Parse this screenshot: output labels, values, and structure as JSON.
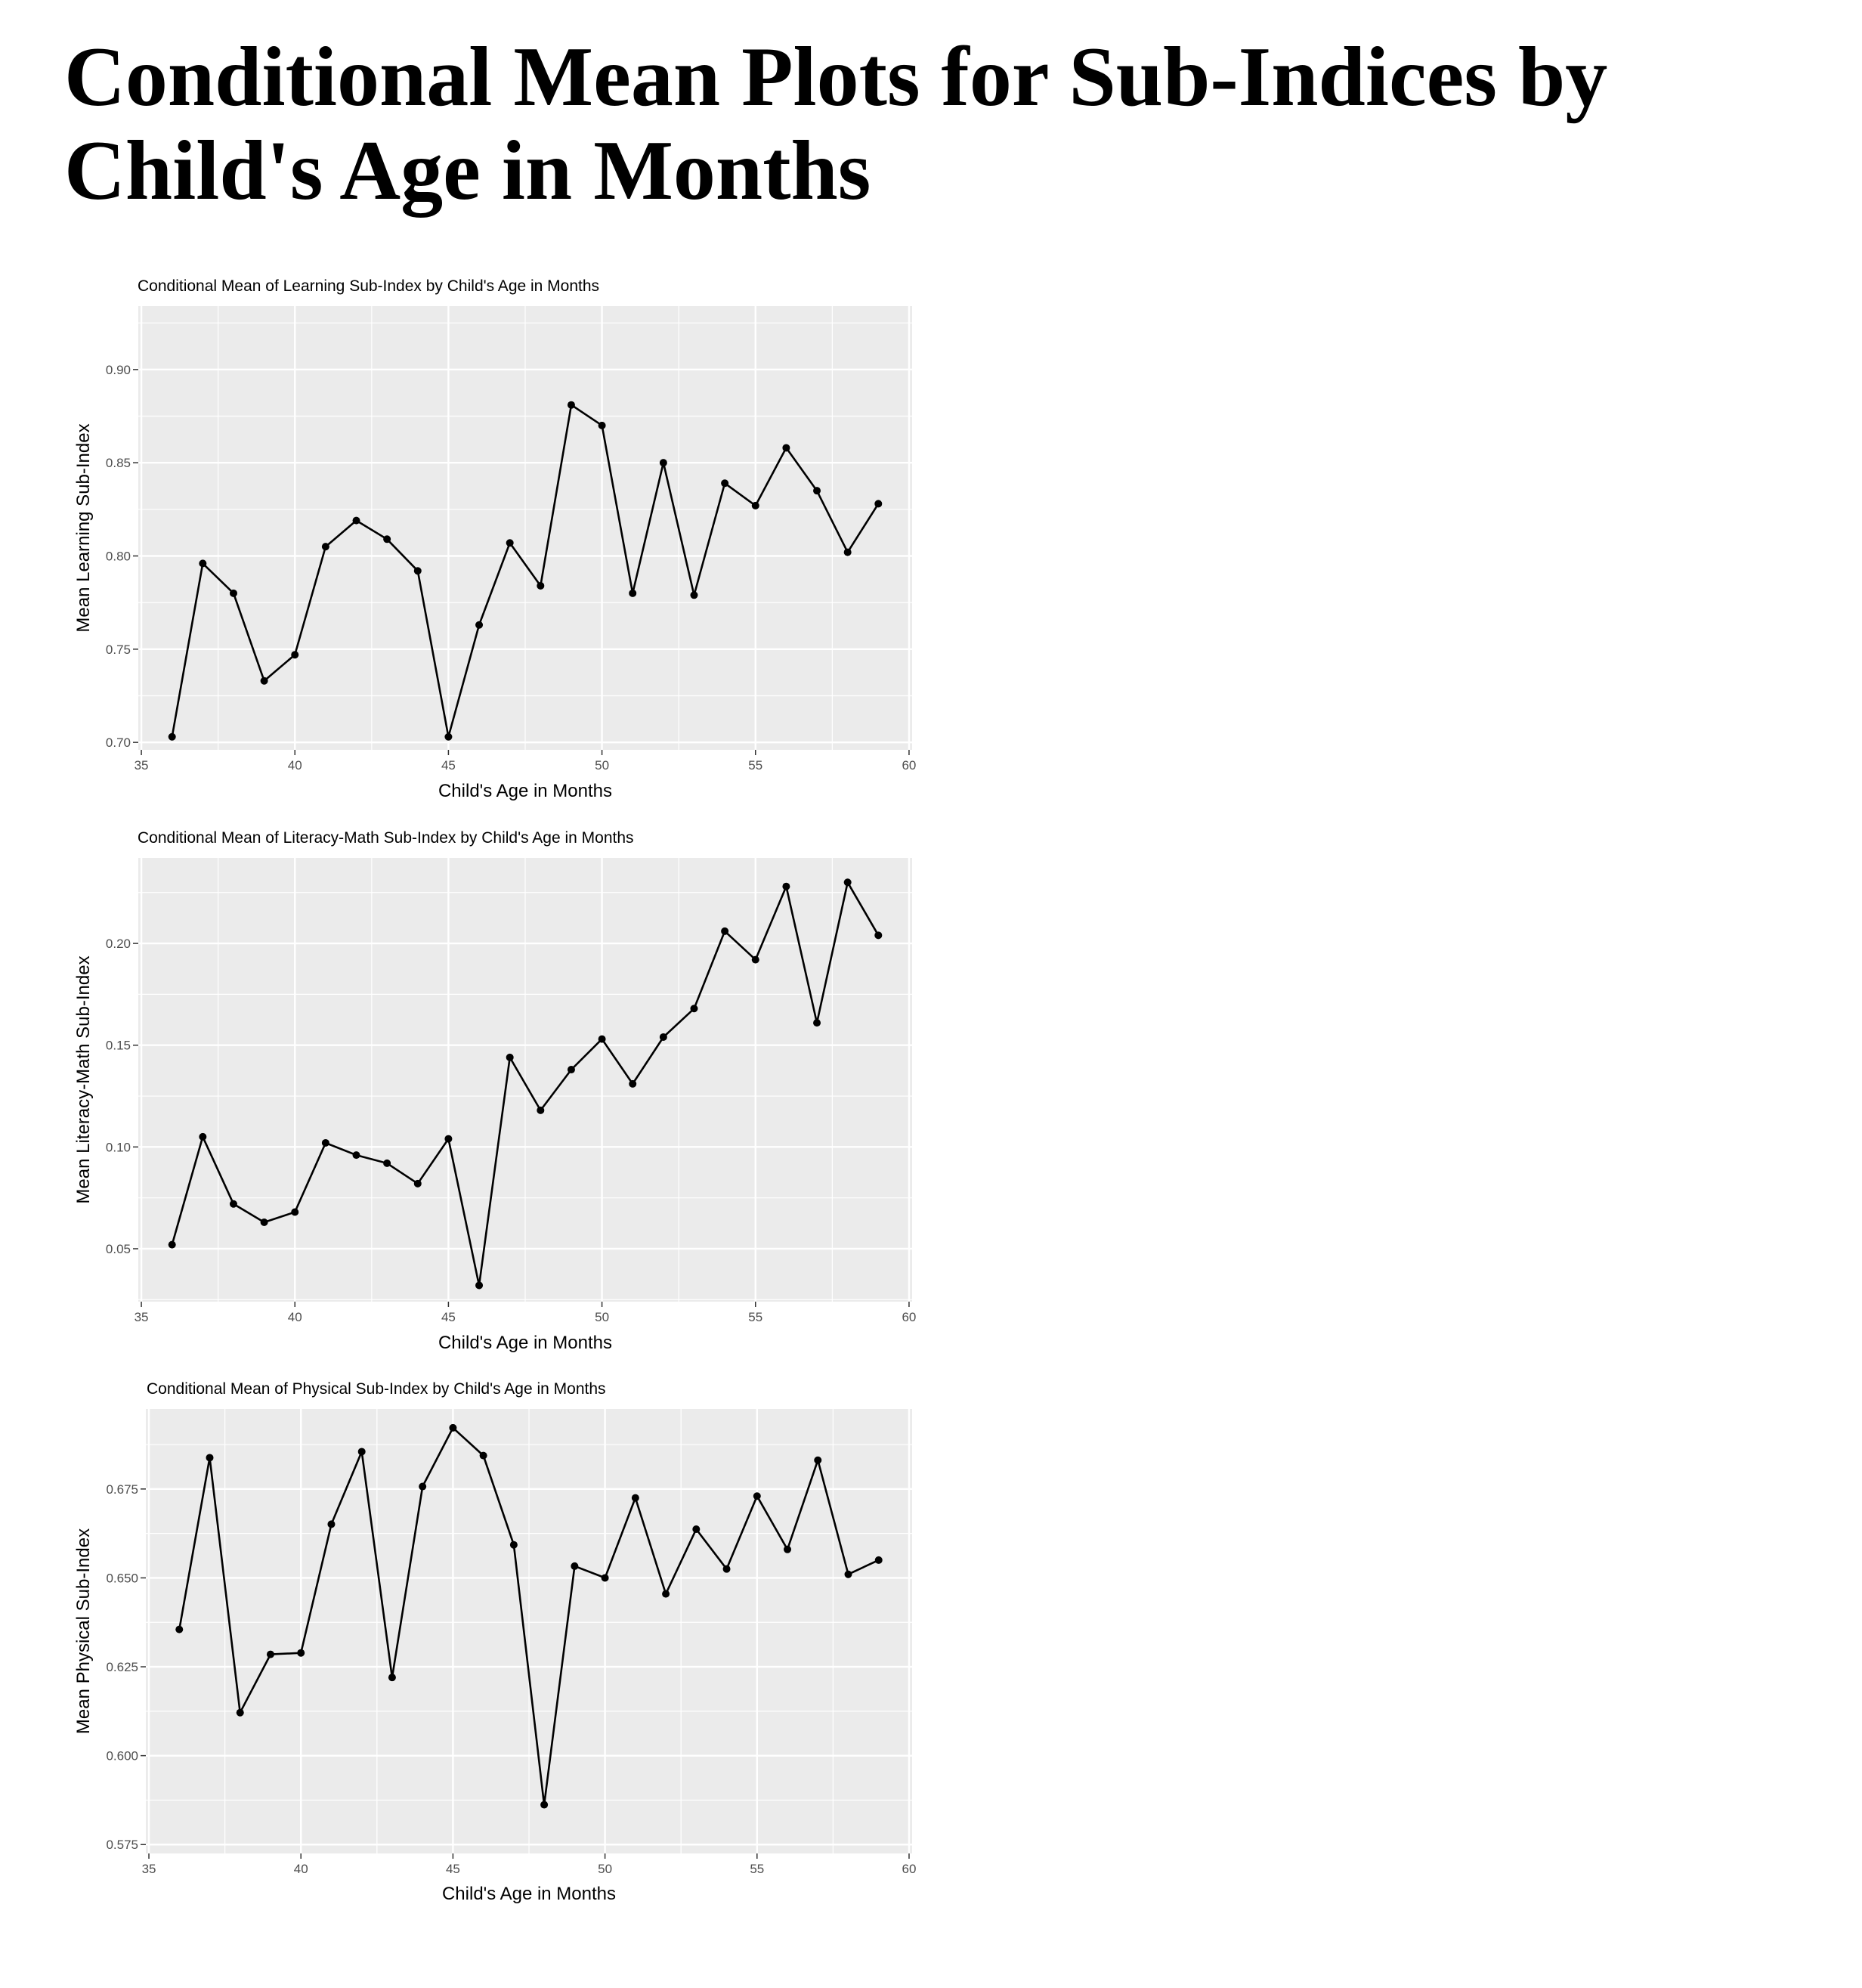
{
  "page": {
    "title": "Conditional Mean Plots for Sub-Indices by Child's Age in Months"
  },
  "chart_data": [
    {
      "type": "line",
      "title": "Conditional Mean of Learning  Sub-Index by Child's Age in Months",
      "xlabel": "Child's Age in Months",
      "ylabel": "Mean Learning Sub-Index",
      "xlim": [
        34.9,
        60.1
      ],
      "ylim": [
        0.696,
        0.934
      ],
      "xticks": [
        35,
        40,
        45,
        50,
        55,
        60
      ],
      "xtick_labels": [
        "35",
        "40",
        "45",
        "50",
        "55",
        "60"
      ],
      "yticks": [
        0.7,
        0.75,
        0.8,
        0.85,
        0.9
      ],
      "ytick_labels": [
        "0.70",
        "0.75",
        "0.80",
        "0.85",
        "0.90"
      ],
      "grid": true,
      "series": [
        {
          "x": [
            36,
            37,
            38,
            39,
            40,
            41,
            42,
            43,
            44,
            45,
            46,
            47,
            48,
            49,
            50,
            51,
            52,
            53,
            54,
            55,
            56,
            57,
            58,
            59
          ],
          "y": [
            0.703,
            0.796,
            0.78,
            0.733,
            0.747,
            0.805,
            0.819,
            0.809,
            0.792,
            0.703,
            0.763,
            0.807,
            0.784,
            0.881,
            0.87,
            0.78,
            0.85,
            0.779,
            0.839,
            0.827,
            0.858,
            0.835,
            0.802,
            0.828
          ]
        }
      ]
    },
    {
      "type": "line",
      "title": "Conditional Mean of Literacy-Math  Sub-Index by Child's Age in Months",
      "xlabel": "Child's Age in Months",
      "ylabel": "Mean Literacy-Math Sub-Index",
      "xlim": [
        34.9,
        60.1
      ],
      "ylim": [
        0.024,
        0.242
      ],
      "xticks": [
        35,
        40,
        45,
        50,
        55,
        60
      ],
      "xtick_labels": [
        "35",
        "40",
        "45",
        "50",
        "55",
        "60"
      ],
      "yticks": [
        0.05,
        0.1,
        0.15,
        0.2
      ],
      "ytick_labels": [
        "0.05",
        "0.10",
        "0.15",
        "0.20"
      ],
      "grid": true,
      "series": [
        {
          "x": [
            36,
            37,
            38,
            39,
            40,
            41,
            42,
            43,
            44,
            45,
            46,
            47,
            48,
            49,
            50,
            51,
            52,
            53,
            54,
            55,
            56,
            57,
            58,
            59
          ],
          "y": [
            0.052,
            0.105,
            0.072,
            0.063,
            0.068,
            0.102,
            0.096,
            0.092,
            0.082,
            0.104,
            0.032,
            0.144,
            0.118,
            0.138,
            0.153,
            0.131,
            0.154,
            0.168,
            0.206,
            0.192,
            0.228,
            0.161,
            0.23,
            0.204
          ]
        }
      ]
    },
    {
      "type": "line",
      "title": "Conditional Mean of Physical  Sub-Index by Child's Age in Months",
      "xlabel": "Child's Age in Months",
      "ylabel": "Mean Physical Sub-Index",
      "xlim": [
        34.9,
        60.1
      ],
      "ylim": [
        0.5725,
        0.6975
      ],
      "xticks": [
        35,
        40,
        45,
        50,
        55,
        60
      ],
      "xtick_labels": [
        "35",
        "40",
        "45",
        "50",
        "55",
        "60"
      ],
      "yticks": [
        0.575,
        0.6,
        0.625,
        0.65,
        0.675
      ],
      "ytick_labels": [
        "0.575",
        "0.600",
        "0.625",
        "0.650",
        "0.675"
      ],
      "grid": true,
      "series": [
        {
          "x": [
            36,
            37,
            38,
            39,
            40,
            41,
            42,
            43,
            44,
            45,
            46,
            47,
            48,
            49,
            50,
            51,
            52,
            53,
            54,
            55,
            56,
            57,
            58,
            59
          ],
          "y": [
            0.6355,
            0.6838,
            0.6121,
            0.6285,
            0.6289,
            0.6651,
            0.6855,
            0.622,
            0.6757,
            0.6922,
            0.6844,
            0.6593,
            0.5862,
            0.6533,
            0.65,
            0.6725,
            0.6455,
            0.6637,
            0.6525,
            0.673,
            0.658,
            0.6831,
            0.651,
            0.655
          ]
        }
      ]
    }
  ]
}
